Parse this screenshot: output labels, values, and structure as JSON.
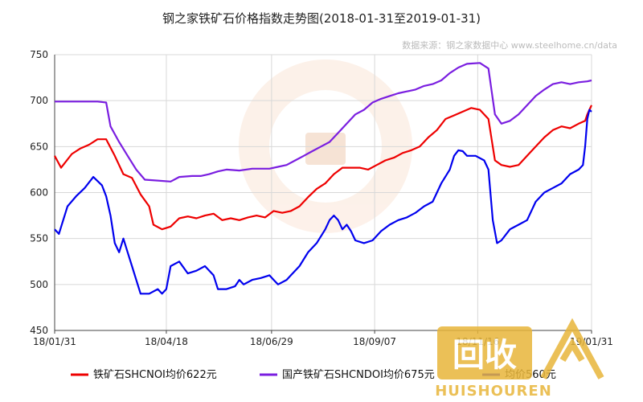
{
  "chart_data": {
    "type": "line",
    "title": "钢之家铁矿石价格指数走势图(2018-01-31至2019-01-31)",
    "source": "数据来源：钢之家数据中心 www.steelhome.cn/data",
    "ylim": [
      450,
      750
    ],
    "yticks": [
      450,
      500,
      550,
      600,
      650,
      700,
      750
    ],
    "xticks": [
      {
        "label": "18/01/31",
        "index": 0
      },
      {
        "label": "18/04/18",
        "index": 52
      },
      {
        "label": "18/06/29",
        "index": 101
      },
      {
        "label": "18/09/07",
        "index": 149
      },
      {
        "label": "18/11/16",
        "index": 197
      },
      {
        "label": "19/01/31",
        "index": 250
      }
    ],
    "grid": true,
    "legend_position": "bottom",
    "series": [
      {
        "name": "铁矿石SHCNOI均价622元",
        "color": "#ee0000",
        "points": [
          [
            0,
            640
          ],
          [
            3,
            627
          ],
          [
            8,
            642
          ],
          [
            12,
            648
          ],
          [
            16,
            652
          ],
          [
            20,
            658
          ],
          [
            24,
            658
          ],
          [
            28,
            640
          ],
          [
            32,
            620
          ],
          [
            36,
            616
          ],
          [
            40,
            598
          ],
          [
            44,
            585
          ],
          [
            46,
            565
          ],
          [
            50,
            560
          ],
          [
            54,
            563
          ],
          [
            58,
            572
          ],
          [
            62,
            574
          ],
          [
            66,
            572
          ],
          [
            70,
            575
          ],
          [
            74,
            577
          ],
          [
            78,
            570
          ],
          [
            82,
            572
          ],
          [
            86,
            570
          ],
          [
            90,
            573
          ],
          [
            94,
            575
          ],
          [
            98,
            573
          ],
          [
            102,
            580
          ],
          [
            106,
            578
          ],
          [
            110,
            580
          ],
          [
            114,
            585
          ],
          [
            118,
            595
          ],
          [
            122,
            604
          ],
          [
            126,
            610
          ],
          [
            130,
            620
          ],
          [
            134,
            627
          ],
          [
            138,
            627
          ],
          [
            142,
            627
          ],
          [
            146,
            625
          ],
          [
            150,
            630
          ],
          [
            154,
            635
          ],
          [
            158,
            638
          ],
          [
            162,
            643
          ],
          [
            166,
            646
          ],
          [
            170,
            650
          ],
          [
            174,
            660
          ],
          [
            178,
            668
          ],
          [
            182,
            680
          ],
          [
            186,
            684
          ],
          [
            190,
            688
          ],
          [
            194,
            692
          ],
          [
            198,
            690
          ],
          [
            202,
            680
          ],
          [
            205,
            635
          ],
          [
            208,
            630
          ],
          [
            212,
            628
          ],
          [
            216,
            630
          ],
          [
            220,
            640
          ],
          [
            224,
            650
          ],
          [
            228,
            660
          ],
          [
            232,
            668
          ],
          [
            236,
            672
          ],
          [
            240,
            670
          ],
          [
            244,
            675
          ],
          [
            247,
            678
          ],
          [
            248,
            685
          ],
          [
            249,
            690
          ],
          [
            250,
            695
          ]
        ]
      },
      {
        "name": "国产铁矿石SHCNDOI均价675元",
        "color": "#7a1ee0",
        "points": [
          [
            0,
            699
          ],
          [
            10,
            699
          ],
          [
            20,
            699
          ],
          [
            24,
            698
          ],
          [
            26,
            672
          ],
          [
            30,
            655
          ],
          [
            34,
            640
          ],
          [
            38,
            625
          ],
          [
            42,
            614
          ],
          [
            48,
            613
          ],
          [
            54,
            612
          ],
          [
            58,
            617
          ],
          [
            64,
            618
          ],
          [
            68,
            618
          ],
          [
            72,
            620
          ],
          [
            76,
            623
          ],
          [
            80,
            625
          ],
          [
            86,
            624
          ],
          [
            92,
            626
          ],
          [
            96,
            626
          ],
          [
            100,
            626
          ],
          [
            104,
            628
          ],
          [
            108,
            630
          ],
          [
            112,
            635
          ],
          [
            116,
            640
          ],
          [
            120,
            645
          ],
          [
            124,
            650
          ],
          [
            128,
            655
          ],
          [
            132,
            665
          ],
          [
            136,
            675
          ],
          [
            140,
            685
          ],
          [
            144,
            690
          ],
          [
            148,
            698
          ],
          [
            152,
            702
          ],
          [
            156,
            705
          ],
          [
            160,
            708
          ],
          [
            164,
            710
          ],
          [
            168,
            712
          ],
          [
            172,
            716
          ],
          [
            176,
            718
          ],
          [
            180,
            722
          ],
          [
            184,
            730
          ],
          [
            188,
            736
          ],
          [
            192,
            740
          ],
          [
            198,
            741
          ],
          [
            202,
            735
          ],
          [
            205,
            685
          ],
          [
            208,
            675
          ],
          [
            212,
            678
          ],
          [
            216,
            685
          ],
          [
            220,
            695
          ],
          [
            224,
            705
          ],
          [
            228,
            712
          ],
          [
            232,
            718
          ],
          [
            236,
            720
          ],
          [
            240,
            718
          ],
          [
            244,
            720
          ],
          [
            248,
            721
          ],
          [
            250,
            722
          ]
        ]
      },
      {
        "name": "均价560元",
        "color": "#0000ee",
        "points": [
          [
            0,
            560
          ],
          [
            2,
            555
          ],
          [
            6,
            585
          ],
          [
            10,
            596
          ],
          [
            14,
            605
          ],
          [
            18,
            617
          ],
          [
            22,
            608
          ],
          [
            24,
            596
          ],
          [
            26,
            575
          ],
          [
            28,
            545
          ],
          [
            30,
            535
          ],
          [
            32,
            550
          ],
          [
            34,
            535
          ],
          [
            36,
            520
          ],
          [
            38,
            505
          ],
          [
            40,
            490
          ],
          [
            44,
            490
          ],
          [
            48,
            495
          ],
          [
            50,
            490
          ],
          [
            52,
            495
          ],
          [
            54,
            520
          ],
          [
            58,
            525
          ],
          [
            62,
            512
          ],
          [
            66,
            515
          ],
          [
            70,
            520
          ],
          [
            72,
            515
          ],
          [
            74,
            510
          ],
          [
            76,
            495
          ],
          [
            80,
            495
          ],
          [
            84,
            498
          ],
          [
            86,
            505
          ],
          [
            88,
            500
          ],
          [
            92,
            505
          ],
          [
            96,
            507
          ],
          [
            100,
            510
          ],
          [
            102,
            505
          ],
          [
            104,
            500
          ],
          [
            108,
            505
          ],
          [
            110,
            510
          ],
          [
            114,
            520
          ],
          [
            118,
            535
          ],
          [
            122,
            545
          ],
          [
            126,
            560
          ],
          [
            128,
            570
          ],
          [
            130,
            575
          ],
          [
            132,
            570
          ],
          [
            134,
            560
          ],
          [
            136,
            565
          ],
          [
            138,
            558
          ],
          [
            140,
            548
          ],
          [
            144,
            545
          ],
          [
            148,
            548
          ],
          [
            152,
            558
          ],
          [
            156,
            565
          ],
          [
            160,
            570
          ],
          [
            164,
            573
          ],
          [
            168,
            578
          ],
          [
            172,
            585
          ],
          [
            176,
            590
          ],
          [
            180,
            610
          ],
          [
            184,
            625
          ],
          [
            186,
            640
          ],
          [
            188,
            646
          ],
          [
            190,
            645
          ],
          [
            192,
            640
          ],
          [
            196,
            640
          ],
          [
            200,
            635
          ],
          [
            202,
            625
          ],
          [
            204,
            570
          ],
          [
            206,
            545
          ],
          [
            208,
            548
          ],
          [
            212,
            560
          ],
          [
            216,
            565
          ],
          [
            220,
            570
          ],
          [
            224,
            590
          ],
          [
            228,
            600
          ],
          [
            232,
            605
          ],
          [
            236,
            610
          ],
          [
            240,
            620
          ],
          [
            244,
            625
          ],
          [
            246,
            630
          ],
          [
            247,
            650
          ],
          [
            248,
            680
          ],
          [
            249,
            690
          ],
          [
            250,
            688
          ]
        ]
      }
    ]
  },
  "watermark": {
    "brand_text": "回收",
    "brand_pinyin": "HUISHOUREN"
  }
}
